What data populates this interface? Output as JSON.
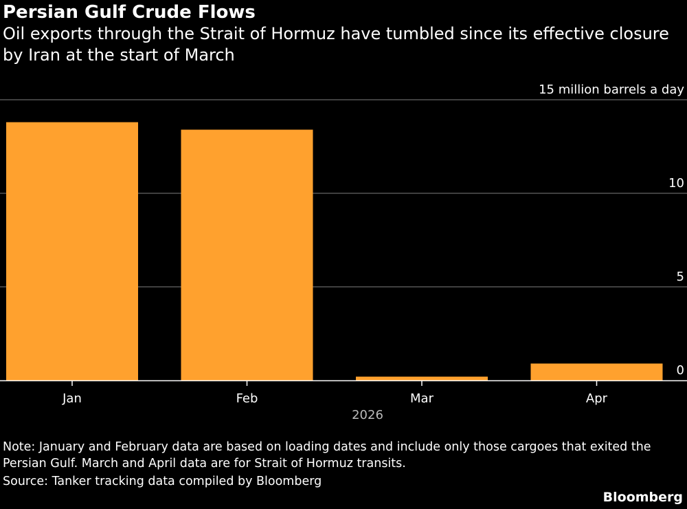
{
  "header": {
    "title": "Persian Gulf Crude Flows",
    "subtitle": "Oil exports through the Strait of Hormuz have tumbled since its effective closure by Iran at the start of March"
  },
  "chart_data": {
    "type": "bar",
    "categories": [
      "Jan",
      "Feb",
      "Mar",
      "Apr"
    ],
    "values": [
      13.8,
      13.4,
      0.2,
      0.9
    ],
    "ylabel": "15 million barrels a day",
    "xlabel": "2026",
    "ylim": [
      0,
      15
    ],
    "yticks": [
      {
        "value": 0,
        "label": "0"
      },
      {
        "value": 5,
        "label": "5"
      },
      {
        "value": 10,
        "label": "10"
      },
      {
        "value": 15,
        "label": "15 million barrels a day"
      }
    ],
    "grid": true,
    "colors": {
      "bar": "#ffa12e",
      "grid": "#555555",
      "axis": "#ffffff",
      "muted_text": "#bbbbbb",
      "background": "#000000"
    }
  },
  "footer": {
    "note": "Note: January and February data are based on loading dates and include only those cargoes that exited the Persian Gulf. March and April data are for Strait of Hormuz transits.",
    "source": "Source: Tanker tracking data compiled by Bloomberg",
    "brand": "Bloomberg"
  }
}
